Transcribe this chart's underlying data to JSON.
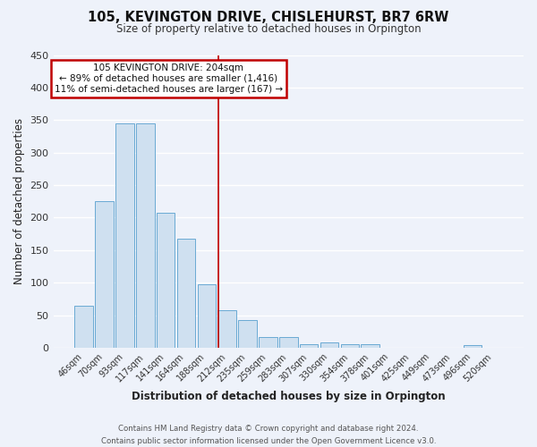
{
  "title": "105, KEVINGTON DRIVE, CHISLEHURST, BR7 6RW",
  "subtitle": "Size of property relative to detached houses in Orpington",
  "xlabel": "Distribution of detached houses by size in Orpington",
  "ylabel": "Number of detached properties",
  "bar_color": "#cfe0f0",
  "bar_edge_color": "#6aaad4",
  "categories": [
    "46sqm",
    "70sqm",
    "93sqm",
    "117sqm",
    "141sqm",
    "164sqm",
    "188sqm",
    "212sqm",
    "235sqm",
    "259sqm",
    "283sqm",
    "307sqm",
    "330sqm",
    "354sqm",
    "378sqm",
    "401sqm",
    "425sqm",
    "449sqm",
    "473sqm",
    "496sqm",
    "520sqm"
  ],
  "values": [
    65,
    225,
    345,
    345,
    208,
    167,
    97,
    57,
    42,
    16,
    16,
    6,
    8,
    6,
    5,
    0,
    0,
    0,
    0,
    4,
    0
  ],
  "ylim": [
    0,
    450
  ],
  "yticks": [
    0,
    50,
    100,
    150,
    200,
    250,
    300,
    350,
    400,
    450
  ],
  "vline_color": "#c00000",
  "annotation_title": "105 KEVINGTON DRIVE: 204sqm",
  "annotation_line1": "← 89% of detached houses are smaller (1,416)",
  "annotation_line2": "11% of semi-detached houses are larger (167) →",
  "annotation_box_color": "#ffffff",
  "annotation_box_edge": "#c00000",
  "background_color": "#eef2fa",
  "grid_color": "#ffffff",
  "footer_line1": "Contains HM Land Registry data © Crown copyright and database right 2024.",
  "footer_line2": "Contains public sector information licensed under the Open Government Licence v3.0."
}
